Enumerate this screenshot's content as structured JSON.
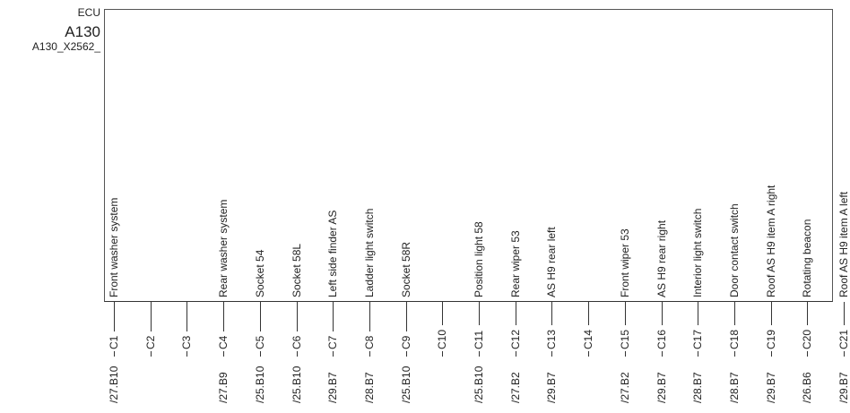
{
  "header": {
    "line1": "ECU",
    "line2": "A130",
    "line3": "A130_X2562_"
  },
  "pins": [
    {
      "pin": "C1",
      "label": "Front washer system",
      "ref": "/27.B10"
    },
    {
      "pin": "C2",
      "label": "",
      "ref": ""
    },
    {
      "pin": "C3",
      "label": "",
      "ref": ""
    },
    {
      "pin": "C4",
      "label": "Rear washer system",
      "ref": "/27.B9"
    },
    {
      "pin": "C5",
      "label": "Socket 54",
      "ref": "/25.B10"
    },
    {
      "pin": "C6",
      "label": "Socket 58L",
      "ref": "/25.B10"
    },
    {
      "pin": "C7",
      "label": "Left side finder AS",
      "ref": "/29.B7"
    },
    {
      "pin": "C8",
      "label": "Ladder light switch",
      "ref": "/28.B7"
    },
    {
      "pin": "C9",
      "label": "Socket 58R",
      "ref": "/25.B10"
    },
    {
      "pin": "C10",
      "label": "",
      "ref": ""
    },
    {
      "pin": "C11",
      "label": "Position light 58",
      "ref": "/25.B10"
    },
    {
      "pin": "C12",
      "label": "Rear wiper 53",
      "ref": "/27.B2"
    },
    {
      "pin": "C13",
      "label": "AS H9 rear left",
      "ref": "/29.B7"
    },
    {
      "pin": "C14",
      "label": "",
      "ref": ""
    },
    {
      "pin": "C15",
      "label": "Front wiper 53",
      "ref": "/27.B2"
    },
    {
      "pin": "C16",
      "label": "AS H9 rear right",
      "ref": "/29.B7"
    },
    {
      "pin": "C17",
      "label": "Interior light switch",
      "ref": "/28.B7"
    },
    {
      "pin": "C18",
      "label": "Door contact switch",
      "ref": "/28.B7"
    },
    {
      "pin": "C19",
      "label": "Roof AS H9 item A right",
      "ref": "/29.B7"
    },
    {
      "pin": "C20",
      "label": "Rotating beacon",
      "ref": "/26.B6"
    },
    {
      "pin": "C21",
      "label": "Roof AS H9 item A left",
      "ref": "/29.B7"
    }
  ]
}
